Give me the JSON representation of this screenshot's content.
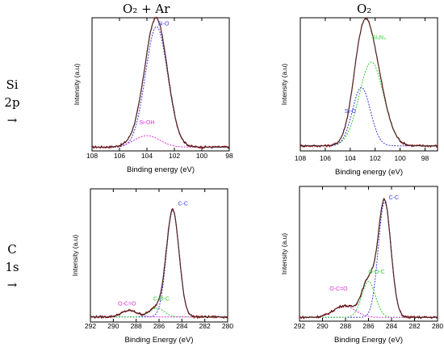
{
  "headers": {
    "col1": "O₂ + Ar",
    "col2": "O₂",
    "row1": [
      "Si",
      "2p",
      "→"
    ],
    "row2": [
      "C",
      "1s",
      "→"
    ]
  },
  "colors": {
    "frame": "#000000",
    "experimental": "#8b0000",
    "envelope": "#333333",
    "blue": "#3b3bd6",
    "magenta": "#dd33dd",
    "green": "#2ecc2e"
  },
  "chart_data": [
    {
      "type": "line",
      "panel": "Si 2p, O2 + Ar",
      "xlabel": "Binding energy (eV)",
      "ylabel": "Intensity (a.u)",
      "xlim": [
        108,
        98
      ],
      "xticks": [
        108,
        106,
        104,
        102,
        100,
        98
      ],
      "ylim": [
        0,
        1.05
      ],
      "background": 0.03,
      "series": [
        {
          "name": "Si-O",
          "color": "blue",
          "center": 103.3,
          "height": 0.95,
          "fwhm": 1.9
        },
        {
          "name": "Si-OH",
          "color": "magenta",
          "center": 104.0,
          "height": 0.09,
          "fwhm": 2.2
        }
      ],
      "labels": [
        {
          "text": "Si-O",
          "x": 102.8,
          "y": 0.99,
          "color": "blue"
        },
        {
          "text": "Si-OH",
          "x": 104.0,
          "y": 0.21,
          "color": "magenta"
        }
      ]
    },
    {
      "type": "line",
      "panel": "Si 2p, O2",
      "xlabel": "Binding energy (eV)",
      "ylabel": "Intensity (a.u)",
      "xlim": [
        108,
        97
      ],
      "xticks": [
        108,
        106,
        104,
        102,
        100,
        98
      ],
      "ylim": [
        0,
        1.05
      ],
      "background": 0.04,
      "series": [
        {
          "name": "Si₃N₄",
          "color": "green",
          "center": 102.3,
          "height": 0.66,
          "fwhm": 2.3
        },
        {
          "name": "Si-O",
          "color": "blue",
          "center": 103.1,
          "height": 0.46,
          "fwhm": 1.7
        }
      ],
      "labels": [
        {
          "text": "Si₃N₄",
          "x": 101.7,
          "y": 0.88,
          "color": "green"
        },
        {
          "text": "Si-O",
          "x": 104.0,
          "y": 0.3,
          "color": "blue"
        }
      ]
    },
    {
      "type": "line",
      "panel": "C 1s, O2 + Ar",
      "xlabel": "Binding Energy (eV)",
      "ylabel": "Intensity (a.u)",
      "xlim": [
        292,
        280
      ],
      "xticks": [
        292,
        290,
        288,
        286,
        284,
        282,
        280
      ],
      "ylim": [
        0,
        1.05
      ],
      "background": 0.04,
      "series": [
        {
          "name": "C-C",
          "color": "blue",
          "center": 284.8,
          "height": 0.84,
          "fwhm": 1.3
        },
        {
          "name": "C-O-C",
          "color": "green",
          "center": 286.2,
          "height": 0.07,
          "fwhm": 1.5
        },
        {
          "name": "O-C=O",
          "color": "magenta",
          "center": 288.6,
          "height": 0.05,
          "fwhm": 1.6
        }
      ],
      "labels": [
        {
          "text": "C-C",
          "x": 283.9,
          "y": 0.92,
          "color": "blue"
        },
        {
          "text": "C-O-C",
          "x": 285.8,
          "y": 0.17,
          "color": "green"
        },
        {
          "text": "O-C=O",
          "x": 288.8,
          "y": 0.13,
          "color": "magenta"
        }
      ]
    },
    {
      "type": "line",
      "panel": "C 1s, O2",
      "xlabel": "Binding Energy (eV)",
      "ylabel": "Intensity (a.u)",
      "xlim": [
        292,
        280
      ],
      "xticks": [
        292,
        290,
        288,
        286,
        284,
        282,
        280
      ],
      "ylim": [
        0,
        1.05
      ],
      "background": 0.03,
      "series": [
        {
          "name": "C-C",
          "color": "blue",
          "center": 284.6,
          "height": 0.9,
          "fwhm": 1.3
        },
        {
          "name": "C-O-C",
          "color": "green",
          "center": 286.0,
          "height": 0.28,
          "fwhm": 1.4
        },
        {
          "name": "O-C=O",
          "color": "magenta",
          "center": 288.1,
          "height": 0.09,
          "fwhm": 2.2
        }
      ],
      "labels": [
        {
          "text": "C-C",
          "x": 283.8,
          "y": 0.95,
          "color": "blue"
        },
        {
          "text": "C-O-C",
          "x": 285.3,
          "y": 0.37,
          "color": "green"
        },
        {
          "text": "O-C=O",
          "x": 288.6,
          "y": 0.24,
          "color": "magenta"
        }
      ]
    }
  ]
}
